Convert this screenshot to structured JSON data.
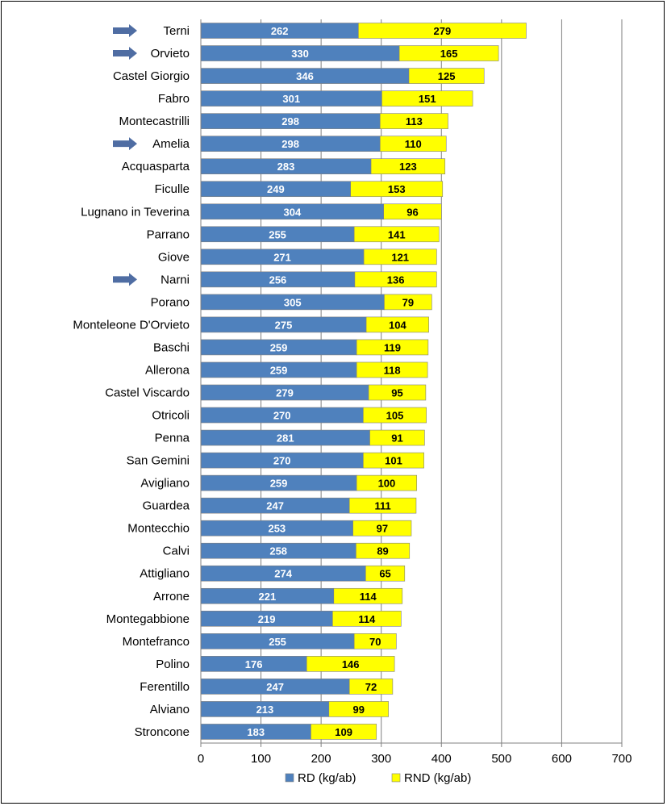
{
  "chart_data": {
    "type": "bar",
    "orientation": "horizontal",
    "stacked": true,
    "categories": [
      "Terni",
      "Orvieto",
      "Castel Giorgio",
      "Fabro",
      "Montecastrilli",
      "Amelia",
      "Acquasparta",
      "Ficulle",
      "Lugnano in Teverina",
      "Parrano",
      "Giove",
      "Narni",
      "Porano",
      "Monteleone D'Orvieto",
      "Baschi",
      "Allerona",
      "Castel Viscardo",
      "Otricoli",
      "Penna",
      "San Gemini",
      "Avigliano",
      "Guardea",
      "Montecchio",
      "Calvi",
      "Attigliano",
      "Arrone",
      "Montegabbione",
      "Montefranco",
      "Polino",
      "Ferentillo",
      "Alviano",
      "Stroncone"
    ],
    "series": [
      {
        "name": "RD (kg/ab)",
        "color": "#4F81BD",
        "values": [
          262,
          330,
          346,
          301,
          298,
          298,
          283,
          249,
          304,
          255,
          271,
          256,
          305,
          275,
          259,
          259,
          279,
          270,
          281,
          270,
          259,
          247,
          253,
          258,
          274,
          221,
          219,
          255,
          176,
          247,
          213,
          183
        ]
      },
      {
        "name": "RND (kg/ab)",
        "color": "#FFFF00",
        "values": [
          279,
          165,
          125,
          151,
          113,
          110,
          123,
          153,
          96,
          141,
          121,
          136,
          79,
          104,
          119,
          118,
          95,
          105,
          91,
          101,
          100,
          111,
          97,
          89,
          65,
          114,
          114,
          70,
          146,
          72,
          99,
          109
        ]
      }
    ],
    "highlighted": [
      "Terni",
      "Orvieto",
      "Amelia",
      "Narni"
    ],
    "highlight_icon": "right-arrow-icon",
    "xlim": [
      0,
      700
    ],
    "xticks": [
      "0",
      "100",
      "200",
      "300",
      "400",
      "500",
      "600",
      "700"
    ],
    "grid": "vertical",
    "legend": "bottom",
    "colors": {
      "arrow": "#4F6DA3",
      "grid": "#808080",
      "bar_border": "#7F7F7F"
    }
  }
}
